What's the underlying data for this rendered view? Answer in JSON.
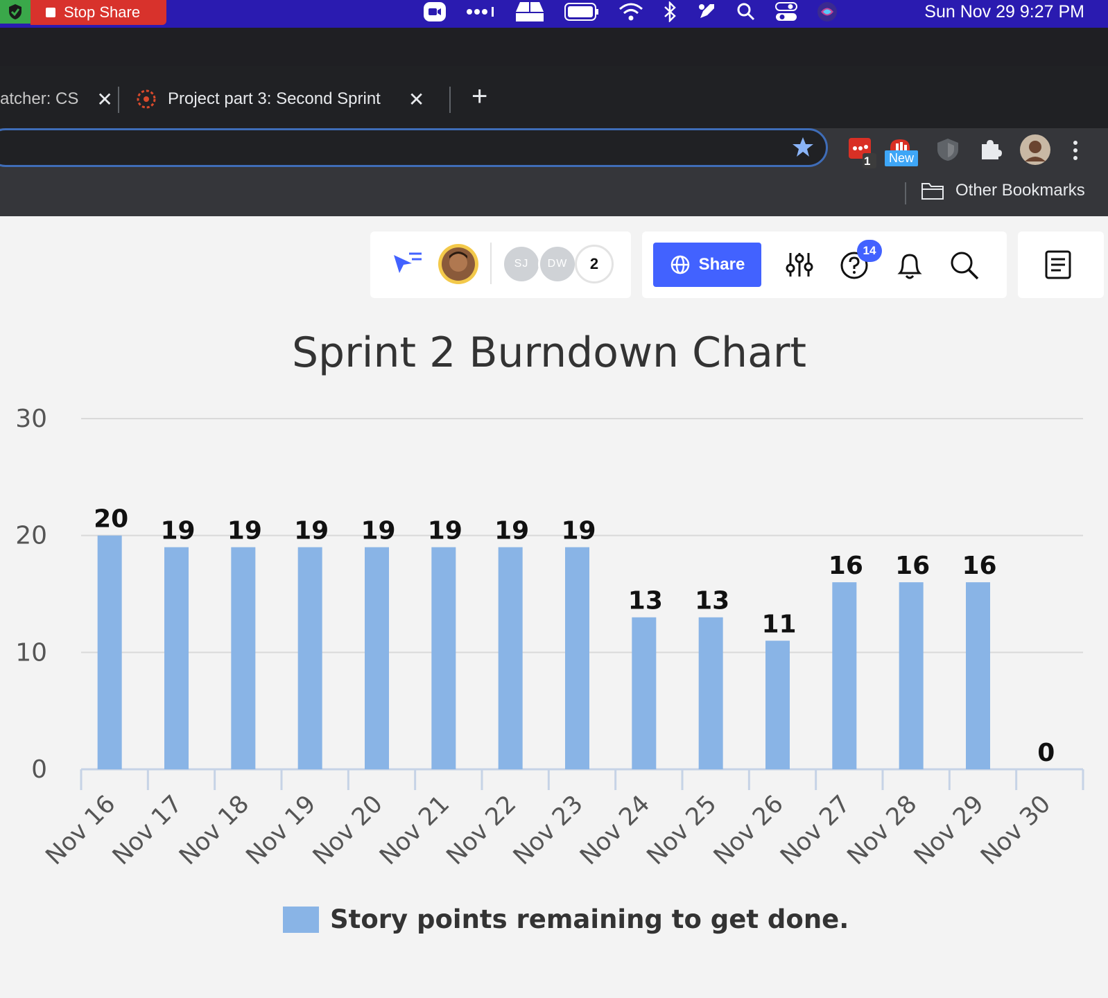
{
  "menubar": {
    "stop_share_label": "Stop Share",
    "clock": "Sun Nov 29  9:27 PM",
    "icons": [
      "zoom-icon",
      "dots-icon",
      "drive-icon",
      "battery-icon",
      "wifi-icon",
      "bluetooth-icon",
      "rocket-icon",
      "spotlight-icon",
      "control-center-icon",
      "siri-icon"
    ]
  },
  "browser": {
    "tabs": [
      {
        "label": "atcher: CS"
      },
      {
        "label": "Project part 3: Second Sprint"
      }
    ],
    "extensions": {
      "todo_badge": "1",
      "new_badge": "New"
    },
    "bookmarks": {
      "other_label": "Other Bookmarks"
    }
  },
  "app_toolbar": {
    "collaborators": [
      "SJ",
      "DW"
    ],
    "collaborator_count": "2",
    "share_label": "Share",
    "help_badge": "14"
  },
  "colors": {
    "accent": "#4262ff",
    "bar": "#89b4e6",
    "menubar": "#2a1bb0"
  },
  "chart_data": {
    "type": "bar",
    "title": "Sprint 2 Burndown Chart",
    "categories": [
      "Nov 16",
      "Nov 17",
      "Nov 18",
      "Nov 19",
      "Nov 20",
      "Nov 21",
      "Nov 22",
      "Nov 23",
      "Nov 24",
      "Nov 25",
      "Nov 26",
      "Nov 27",
      "Nov 28",
      "Nov 29",
      "Nov 30"
    ],
    "series": [
      {
        "name": "Story points remaining to get done.",
        "values": [
          20,
          19,
          19,
          19,
          19,
          19,
          19,
          19,
          13,
          13,
          11,
          16,
          16,
          16,
          0
        ]
      }
    ],
    "ylim": [
      0,
      30
    ],
    "yticks": [
      0,
      10,
      20,
      30
    ],
    "xlabel": "",
    "ylabel": "",
    "grid": true,
    "legend": "bottom",
    "data_labels": true
  }
}
